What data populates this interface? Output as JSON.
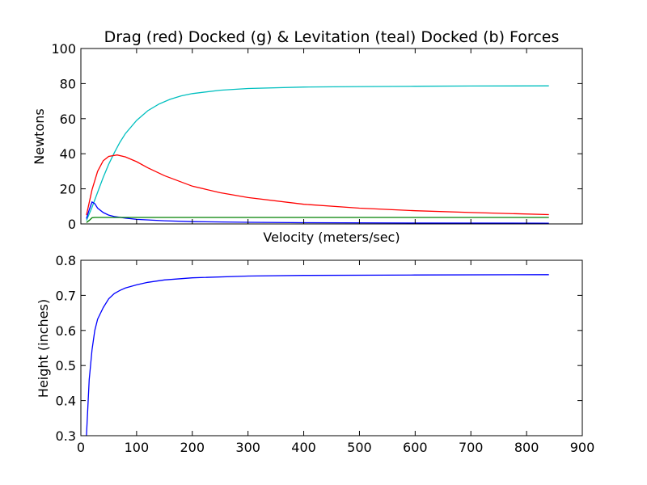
{
  "chart_data": [
    {
      "type": "line",
      "title": "Drag (red) Docked (g) & Levitation (teal) Docked (b) Forces",
      "xlabel": "Velocity (meters/sec)",
      "ylabel": "Newtons",
      "xlim": [
        0,
        900
      ],
      "ylim": [
        0,
        100
      ],
      "yticks": [
        0,
        20,
        40,
        60,
        80,
        100
      ],
      "yticklabels": [
        "0",
        "20",
        "40",
        "60",
        "80",
        "100"
      ],
      "xticks_labeled": false,
      "grid": false,
      "legend": "none",
      "series": [
        {
          "color": "#00bfbf",
          "x": [
            10,
            20,
            30,
            40,
            50,
            60,
            70,
            80,
            100,
            120,
            140,
            160,
            180,
            200,
            250,
            300,
            400,
            500,
            600,
            700,
            840
          ],
          "y": [
            2,
            9.5,
            18,
            26.5,
            34,
            40.5,
            46.5,
            51.5,
            59,
            64.5,
            68.3,
            71,
            73,
            74.3,
            76.2,
            77.2,
            78,
            78.3,
            78.5,
            78.6,
            78.7
          ]
        },
        {
          "color": "#ff0000",
          "x": [
            10,
            20,
            30,
            40,
            50,
            65,
            80,
            100,
            120,
            150,
            200,
            250,
            300,
            400,
            500,
            600,
            700,
            840
          ],
          "y": [
            5,
            19.5,
            30,
            36,
            38.5,
            39.3,
            38.2,
            35.5,
            32,
            27.5,
            21.5,
            17.8,
            15,
            11.2,
            9,
            7.5,
            6.5,
            5.3
          ]
        },
        {
          "color": "#0000ff",
          "x": [
            10,
            15,
            20,
            25,
            30,
            40,
            50,
            60,
            80,
            100,
            150,
            200,
            300,
            400,
            600,
            840
          ],
          "y": [
            3,
            8,
            12.5,
            11.5,
            9,
            6.5,
            5,
            4.2,
            3.3,
            2.6,
            1.8,
            1.3,
            0.9,
            0.7,
            0.5,
            0.4
          ]
        },
        {
          "color": "#008000",
          "x": [
            10,
            15,
            20,
            25,
            30,
            50,
            100,
            200,
            400,
            600,
            840
          ],
          "y": [
            0.8,
            2,
            3.5,
            3.7,
            3.7,
            3.7,
            3.7,
            3.7,
            3.7,
            3.7,
            3.7
          ]
        }
      ]
    },
    {
      "type": "line",
      "title": "",
      "xlabel": "",
      "ylabel": "Height (inches)",
      "xlim": [
        0,
        900
      ],
      "ylim": [
        0.3,
        0.8
      ],
      "xticks": [
        0,
        100,
        200,
        300,
        400,
        500,
        600,
        700,
        800,
        900
      ],
      "xticklabels": [
        "0",
        "100",
        "200",
        "300",
        "400",
        "500",
        "600",
        "700",
        "800",
        "900"
      ],
      "yticks": [
        0.3,
        0.4,
        0.5,
        0.6,
        0.7,
        0.8
      ],
      "yticklabels": [
        "0.3",
        "0.4",
        "0.5",
        "0.6",
        "0.7",
        "0.8"
      ],
      "grid": false,
      "legend": "none",
      "series": [
        {
          "color": "#0000ff",
          "x": [
            10,
            15,
            20,
            25,
            30,
            40,
            50,
            60,
            70,
            80,
            100,
            120,
            150,
            200,
            300,
            400,
            600,
            840
          ],
          "y": [
            0.3,
            0.46,
            0.545,
            0.6,
            0.632,
            0.665,
            0.69,
            0.705,
            0.714,
            0.721,
            0.73,
            0.737,
            0.744,
            0.75,
            0.755,
            0.757,
            0.758,
            0.759
          ]
        }
      ]
    }
  ]
}
